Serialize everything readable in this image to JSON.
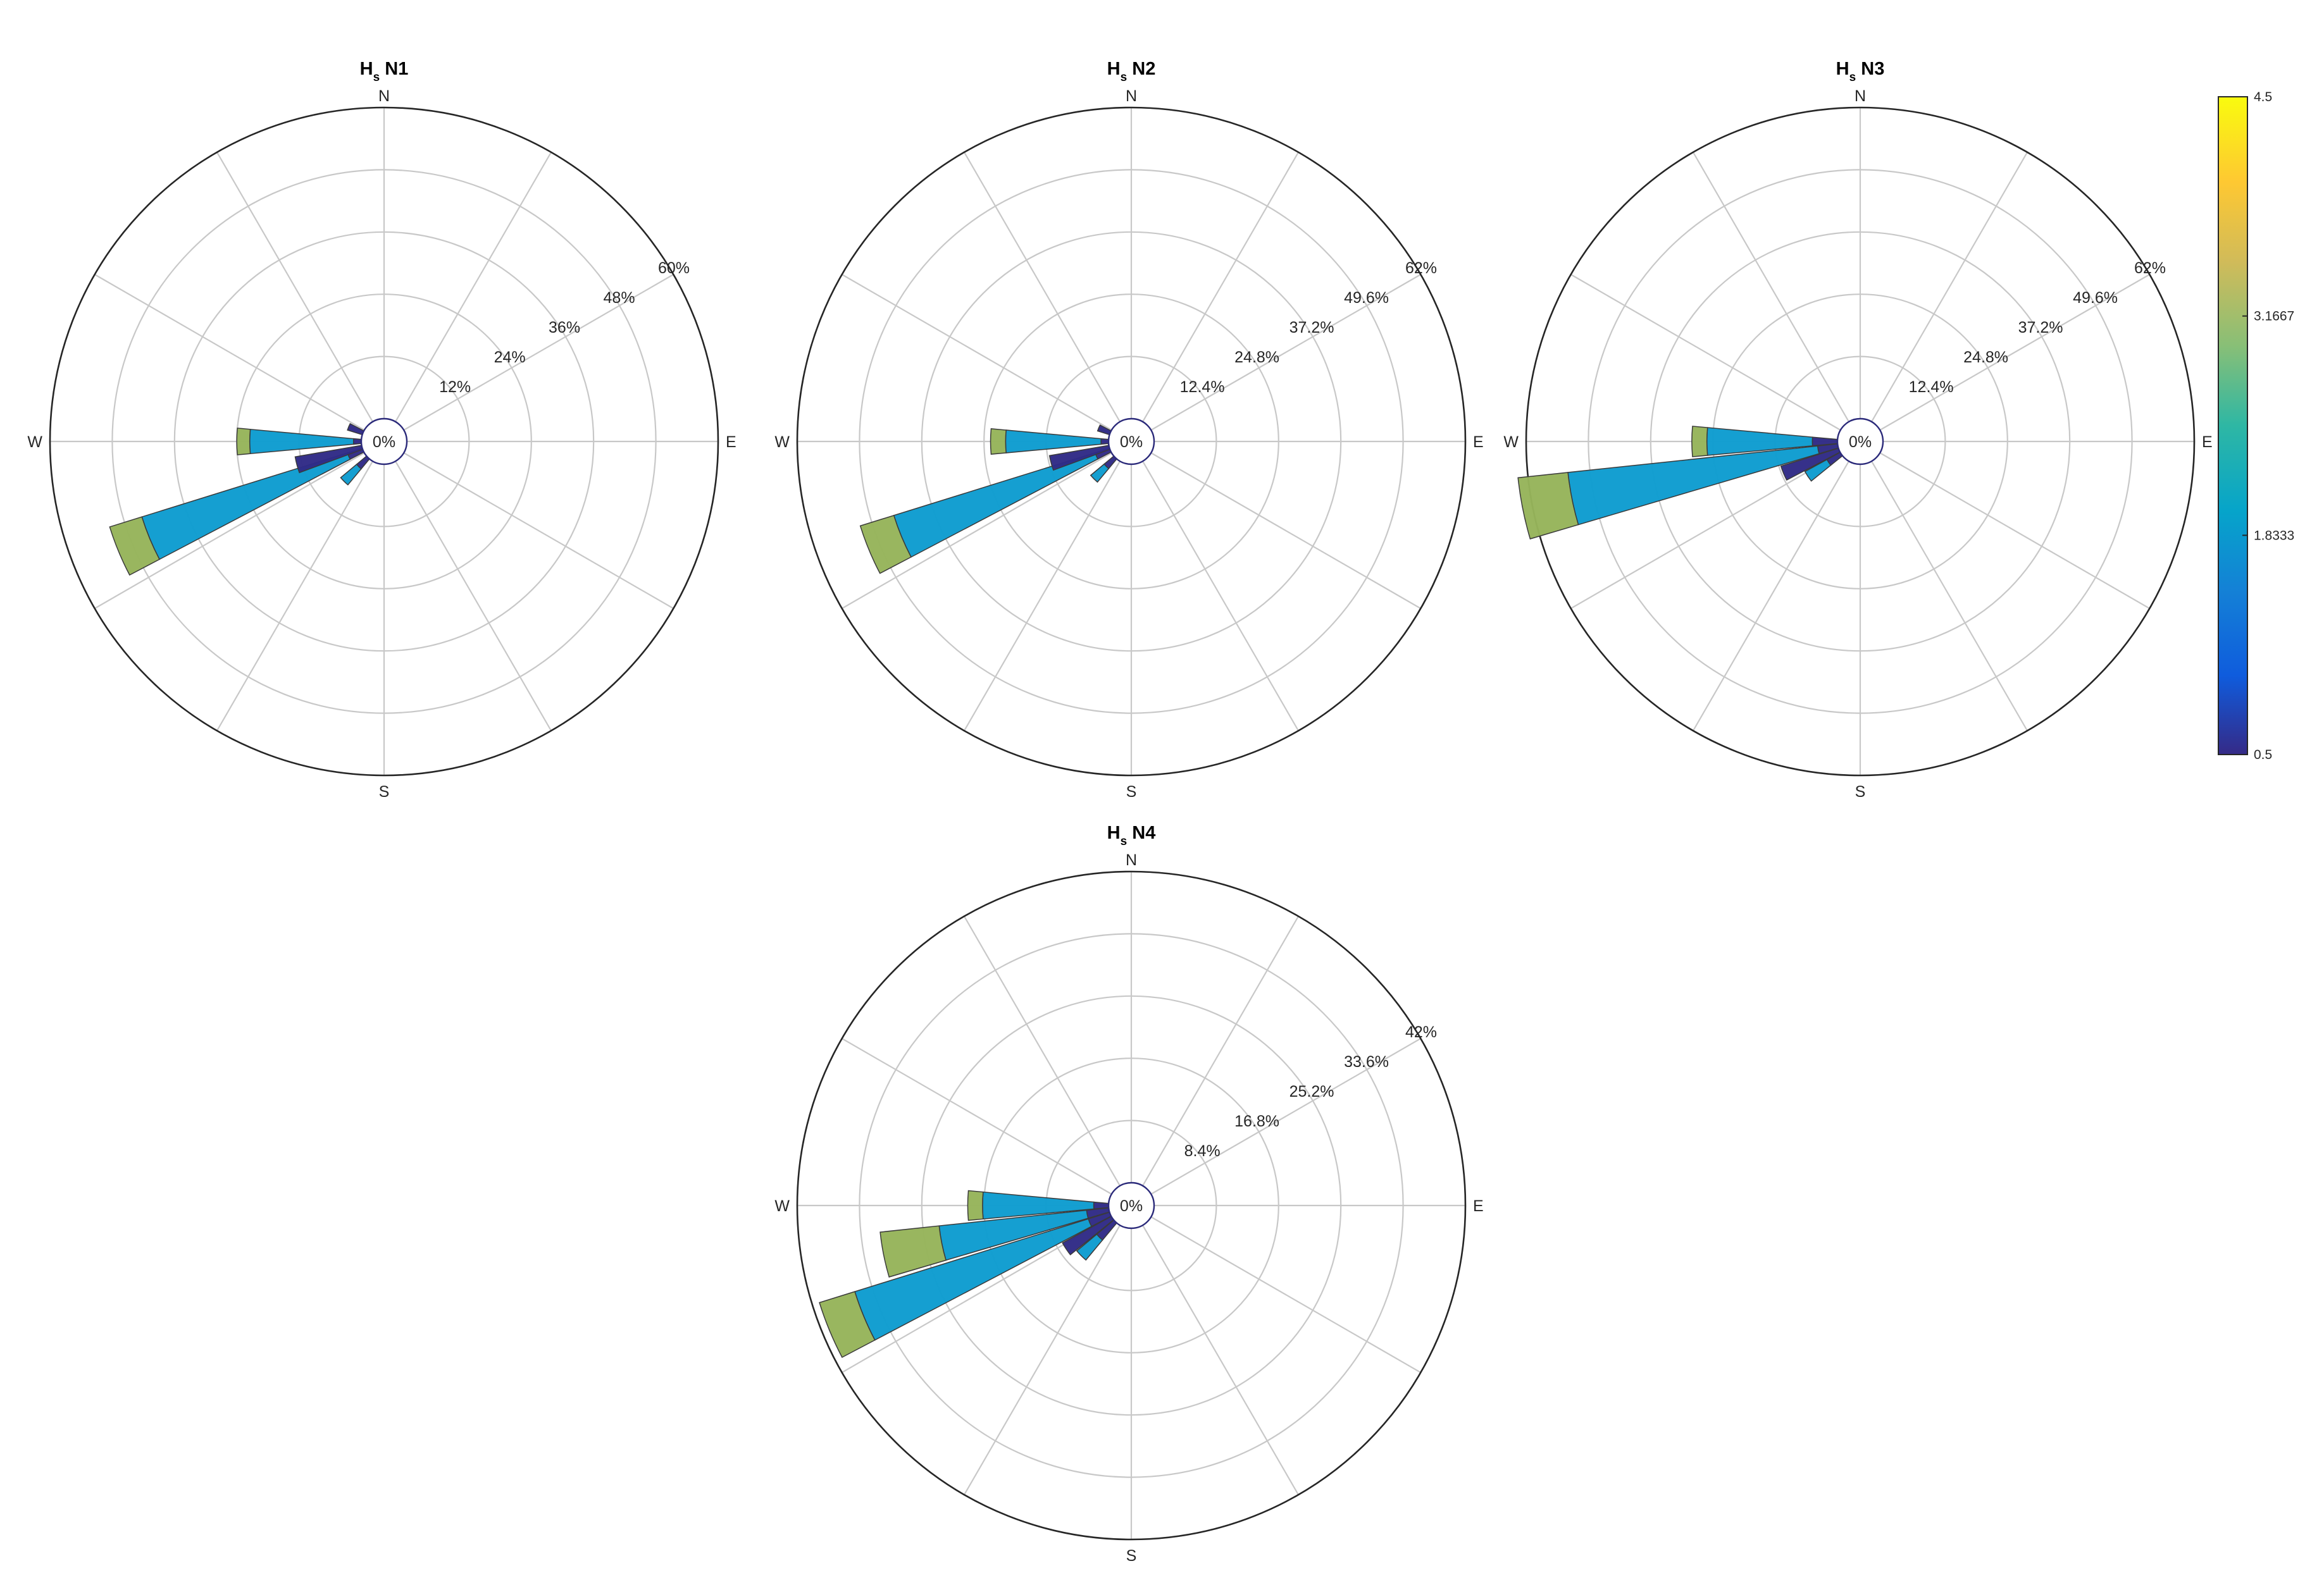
{
  "chart_data": [
    {
      "type": "polar",
      "title": "H N1",
      "title_subscript": "s",
      "center_label": "0%",
      "directions": [
        "N",
        "E",
        "S",
        "W"
      ],
      "rmax": 60,
      "ring_labels": [
        "12%",
        "24%",
        "36%",
        "48%",
        "60%"
      ],
      "sectors": [
        {
          "angle": 270,
          "segments": [
            {
              "value": 1.5,
              "class": 0.5
            },
            {
              "value": 20,
              "class": 1.8333
            },
            {
              "value": 2.5,
              "class": 3.1667
            }
          ]
        },
        {
          "angle": 247.5,
          "segments": [
            {
              "value": 3,
              "class": 0.5
            },
            {
              "value": 41.5,
              "class": 1.8333
            },
            {
              "value": 6.5,
              "class": 3.1667
            }
          ]
        },
        {
          "angle": 255,
          "segments": [
            {
              "value": 13,
              "class": 0.5
            }
          ]
        },
        {
          "angle": 225,
          "segments": [
            {
              "value": 2.5,
              "class": 0.5
            },
            {
              "value": 4,
              "class": 1.8333
            }
          ]
        },
        {
          "angle": 292.5,
          "segments": [
            {
              "value": 3,
              "class": 0.5
            }
          ]
        }
      ]
    },
    {
      "type": "polar",
      "title": "H N2",
      "title_subscript": "s",
      "center_label": "0%",
      "directions": [
        "N",
        "E",
        "S",
        "W"
      ],
      "rmax": 62,
      "ring_labels": [
        "12.4%",
        "24.8%",
        "37.2%",
        "49.6%",
        "62%"
      ],
      "sectors": [
        {
          "angle": 270,
          "segments": [
            {
              "value": 1.5,
              "class": 0.5
            },
            {
              "value": 19,
              "class": 1.8333
            },
            {
              "value": 3,
              "class": 3.1667
            }
          ]
        },
        {
          "angle": 247.5,
          "segments": [
            {
              "value": 3,
              "class": 0.5
            },
            {
              "value": 42,
              "class": 1.8333
            },
            {
              "value": 7,
              "class": 3.1667
            }
          ]
        },
        {
          "angle": 255,
          "segments": [
            {
              "value": 12,
              "class": 0.5
            }
          ]
        },
        {
          "angle": 225,
          "segments": [
            {
              "value": 2.5,
              "class": 0.5
            },
            {
              "value": 3.5,
              "class": 1.8333
            }
          ]
        },
        {
          "angle": 292.5,
          "segments": [
            {
              "value": 2.5,
              "class": 0.5
            }
          ]
        }
      ]
    },
    {
      "type": "polar",
      "title": "H N3",
      "title_subscript": "s",
      "center_label": "0%",
      "directions": [
        "N",
        "E",
        "S",
        "W"
      ],
      "rmax": 62,
      "ring_labels": [
        "12.4%",
        "24.8%",
        "37.2%",
        "49.6%",
        "62%"
      ],
      "sectors": [
        {
          "angle": 270,
          "segments": [
            {
              "value": 5,
              "class": 0.5
            },
            {
              "value": 21,
              "class": 1.8333
            },
            {
              "value": 3,
              "class": 3.1667
            }
          ]
        },
        {
          "angle": 258.75,
          "segments": [
            {
              "value": 4,
              "class": 0.5
            },
            {
              "value": 50,
              "class": 1.8333
            },
            {
              "value": 10,
              "class": 3.1667
            }
          ]
        },
        {
          "angle": 247.5,
          "segments": [
            {
              "value": 12,
              "class": 0.5
            }
          ]
        },
        {
          "angle": 236.25,
          "segments": [
            {
              "value": 3,
              "class": 0.5
            },
            {
              "value": 5,
              "class": 1.8333
            }
          ]
        }
      ]
    },
    {
      "type": "polar",
      "title": "H N4",
      "title_subscript": "s",
      "center_label": "0%",
      "directions": [
        "N",
        "E",
        "S",
        "W"
      ],
      "rmax": 42,
      "ring_labels": [
        "8.4%",
        "16.8%",
        "25.2%",
        "33.6%",
        "42%"
      ],
      "sectors": [
        {
          "angle": 270,
          "segments": [
            {
              "value": 2,
              "class": 0.5
            },
            {
              "value": 15,
              "class": 1.8333
            },
            {
              "value": 2,
              "class": 3.1667
            }
          ]
        },
        {
          "angle": 258.75,
          "segments": [
            {
              "value": 3,
              "class": 0.5
            },
            {
              "value": 20,
              "class": 1.8333
            },
            {
              "value": 8,
              "class": 3.1667
            }
          ]
        },
        {
          "angle": 247.5,
          "segments": [
            {
              "value": 3,
              "class": 0.5
            },
            {
              "value": 33,
              "class": 1.8333
            },
            {
              "value": 5,
              "class": 3.1667
            }
          ]
        },
        {
          "angle": 236.25,
          "segments": [
            {
              "value": 7.5,
              "class": 0.5
            }
          ]
        },
        {
          "angle": 225,
          "segments": [
            {
              "value": 3,
              "class": 0.5
            },
            {
              "value": 3.5,
              "class": 1.8333
            }
          ]
        }
      ]
    }
  ],
  "colorbar": {
    "min": 0.5,
    "max": 4.5,
    "tick_labels": [
      "0.5",
      "1.8333",
      "3.1667",
      "4.5"
    ],
    "colormap": "parula",
    "class_colors": {
      "0.5": "#2f2a86",
      "1.8333": "#0d9ccf",
      "3.1667": "#96b45a"
    }
  }
}
